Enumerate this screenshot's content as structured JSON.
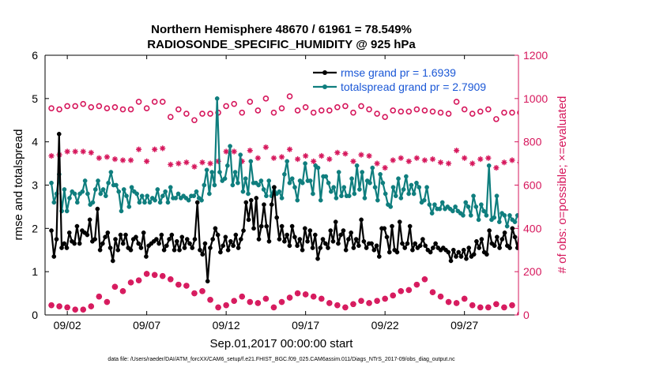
{
  "chart_data": {
    "type": "line",
    "title_line1": "Northern Hemisphere 48670 / 61961 = 78.549%",
    "title_line2": "RADIOSONDE_SPECIFIC_HUMIDITY @ 925 hPa",
    "xlabel": "Sep.01,2017 00:00:00 start",
    "ylabel_left": "rmse and totalspread",
    "ylabel_right": "# of obs: o=possible; ×=evaluated",
    "footnote": "data file: /Users/raeder/DAI/ATM_forcXX/CAM6_setup/f.e21.FHIST_BGC.f09_025.CAM6assim.011/Diags_NTrS_2017-09/obs_diag_output.nc",
    "xlim": [
      0.6,
      30.4
    ],
    "x_ticks": [
      {
        "value": 2,
        "label": "09/02"
      },
      {
        "value": 7,
        "label": "09/07"
      },
      {
        "value": 12,
        "label": "09/12"
      },
      {
        "value": 17,
        "label": "09/17"
      },
      {
        "value": 22,
        "label": "09/22"
      },
      {
        "value": 27,
        "label": "09/27"
      }
    ],
    "y_left": {
      "lim": [
        0,
        6
      ],
      "ticks": [
        0,
        1,
        2,
        3,
        4,
        5,
        6
      ]
    },
    "y_right": {
      "lim": [
        0,
        1200
      ],
      "ticks": [
        0,
        200,
        400,
        600,
        800,
        1000,
        1200
      ]
    },
    "colors": {
      "rmse": "#000000",
      "totalspread": "#0f7e7e",
      "obs": "#d6175c",
      "legend_text": "#1a57d6"
    },
    "legend": [
      {
        "label": "rmse grand pr = 1.6939",
        "series": "rmse"
      },
      {
        "label": "totalspread grand pr = 2.7909",
        "series": "totalspread"
      }
    ],
    "series": [
      {
        "name": "rmse",
        "axis": "left",
        "marker": "dot",
        "values": [
          1.95,
          1.35,
          1.75,
          4.18,
          1.55,
          1.65,
          1.55,
          1.9,
          1.7,
          1.65,
          2.05,
          1.65,
          1.95,
          1.9,
          1.85,
          2.2,
          1.7,
          1.75,
          2.45,
          1.5,
          1.65,
          1.8,
          1.9,
          1.55,
          1.25,
          1.75,
          1.5,
          1.85,
          1.65,
          1.85,
          1.55,
          1.5,
          1.75,
          1.8,
          1.65,
          1.55,
          1.9,
          1.35,
          1.6,
          1.65,
          1.7,
          1.75,
          1.65,
          1.85,
          1.5,
          1.6,
          1.75,
          1.85,
          1.5,
          1.7,
          1.5,
          1.8,
          1.55,
          1.75,
          1.65,
          1.55,
          1.75,
          2.6,
          1.5,
          1.4,
          1.65,
          0.78,
          1.55,
          1.75,
          2.0,
          1.85,
          1.45,
          1.6,
          1.8,
          1.5,
          1.7,
          1.6,
          1.85,
          1.55,
          1.75,
          1.95,
          2.6,
          2.2,
          2.65,
          2.0,
          2.7,
          1.75,
          2.05,
          2.55,
          2.05,
          1.7,
          2.55,
          2.95,
          2.25,
          1.75,
          2.05,
          1.7,
          1.85,
          1.6,
          2.05,
          1.8,
          1.6,
          1.75,
          1.5,
          2.0,
          1.7,
          1.95,
          1.55,
          1.85,
          1.3,
          1.55,
          1.75,
          1.65,
          1.55,
          1.95,
          1.7,
          2.15,
          1.65,
          1.85,
          1.95,
          1.5,
          1.75,
          1.9,
          1.55,
          1.75,
          1.6,
          2.2,
          1.7,
          1.55,
          1.65,
          1.65,
          1.5,
          1.6,
          1.35,
          2.0,
          2.0,
          1.8,
          1.45,
          2.05,
          1.5,
          1.45,
          2.15,
          1.65,
          1.55,
          1.65,
          2.05,
          1.5,
          1.65,
          1.55,
          1.6,
          1.75,
          1.6,
          1.5,
          1.45,
          1.55,
          1.65,
          1.55,
          1.5,
          1.55,
          1.5,
          1.45,
          1.25,
          1.5,
          1.35,
          1.45,
          1.35,
          1.5,
          1.3,
          1.55,
          1.35,
          1.4,
          1.7,
          1.55,
          1.75,
          1.45,
          1.4,
          1.95,
          1.65,
          1.6,
          1.8,
          1.55,
          1.75,
          1.9,
          1.6,
          1.55,
          2.0,
          1.8,
          1.55,
          2.05
        ]
      },
      {
        "name": "totalspread",
        "axis": "left",
        "marker": "dot",
        "values": [
          3.05,
          2.6,
          2.8,
          3.25,
          2.4,
          2.9,
          2.4,
          2.7,
          2.85,
          2.8,
          2.6,
          2.8,
          2.85,
          3.1,
          2.8,
          2.55,
          2.6,
          2.9,
          3.1,
          2.8,
          2.9,
          2.75,
          3.05,
          3.3,
          3.0,
          3.0,
          2.85,
          2.4,
          2.9,
          2.75,
          2.5,
          2.95,
          2.85,
          2.8,
          2.6,
          2.75,
          2.6,
          2.75,
          2.6,
          2.7,
          2.65,
          2.9,
          2.6,
          2.75,
          2.85,
          2.6,
          2.95,
          2.7,
          2.7,
          2.8,
          2.7,
          2.75,
          2.7,
          2.65,
          2.75,
          2.75,
          2.85,
          2.7,
          2.65,
          3.0,
          3.35,
          2.8,
          3.3,
          3.0,
          5.0,
          3.3,
          3.1,
          3.15,
          3.45,
          3.9,
          3.0,
          3.3,
          3.05,
          3.7,
          2.85,
          3.15,
          2.8,
          3.55,
          3.05,
          3.05,
          3.0,
          3.1,
          2.9,
          2.75,
          3.1,
          2.75,
          2.95,
          2.8,
          2.85,
          2.7,
          3.25,
          3.55,
          3.05,
          3.15,
          2.95,
          2.65,
          3.1,
          3.05,
          3.5,
          3.1,
          3.1,
          2.8,
          3.45,
          3.4,
          2.65,
          3.2,
          3.2,
          3.05,
          2.85,
          2.95,
          2.7,
          3.3,
          2.75,
          2.95,
          2.75,
          2.75,
          3.15,
          2.8,
          3.45,
          2.9,
          3.3,
          2.7,
          3.1,
          3.05,
          3.4,
          2.95,
          2.65,
          3.25,
          3.05,
          2.8,
          2.55,
          2.5,
          2.95,
          2.75,
          3.15,
          2.7,
          2.9,
          3.2,
          2.8,
          3.0,
          2.8,
          3.05,
          2.95,
          2.6,
          2.65,
          2.95,
          2.55,
          2.35,
          2.55,
          2.45,
          2.45,
          2.6,
          2.45,
          2.5,
          2.45,
          2.4,
          2.5,
          2.4,
          2.35,
          2.3,
          2.6,
          2.5,
          2.3,
          2.75,
          2.5,
          2.2,
          2.55,
          2.4,
          2.3,
          3.45,
          2.2,
          2.25,
          2.75,
          2.15,
          2.35,
          2.3,
          2.05,
          2.3,
          2.2,
          2.15,
          2.3,
          2.3
        ]
      },
      {
        "name": "obs_possible",
        "axis": "right",
        "marker": "circle",
        "x": [
          1,
          2,
          3,
          4,
          5,
          6,
          7,
          8,
          9,
          10,
          11,
          12,
          13,
          14,
          15,
          16,
          17,
          18,
          19,
          20,
          21,
          22,
          23,
          24,
          25,
          26,
          27,
          28,
          29,
          30
        ],
        "nominal": [
          955,
          965,
          975,
          965,
          960,
          950,
          955,
          985,
          950,
          900,
          930,
          965,
          935,
          945,
          935,
          1010,
          960,
          945,
          960,
          935,
          950,
          915,
          940,
          950,
          940,
          930,
          950,
          940,
          905,
          935
        ],
        "late": [
          950,
          965,
          960,
          955,
          950,
          985,
          985,
          915,
          930,
          930,
          935,
          975,
          985,
          1000,
          955,
          945,
          935,
          945,
          965,
          965,
          930,
          945,
          940,
          945,
          935,
          985,
          930,
          950,
          935,
          935
        ]
      },
      {
        "name": "obs_evaluated",
        "axis": "right",
        "marker": "star",
        "x": [
          1,
          2,
          3,
          4,
          5,
          6,
          7,
          8,
          9,
          10,
          11,
          12,
          13,
          14,
          15,
          16,
          17,
          18,
          19,
          20,
          21,
          22,
          23,
          24,
          25,
          26,
          27,
          28,
          29,
          30
        ],
        "nominal": [
          735,
          755,
          755,
          725,
          720,
          715,
          710,
          770,
          700,
          685,
          700,
          755,
          710,
          725,
          725,
          765,
          735,
          735,
          750,
          710,
          735,
          680,
          725,
          725,
          720,
          700,
          725,
          720,
          680,
          715
        ],
        "late": [
          740,
          755,
          750,
          730,
          715,
          765,
          765,
          695,
          705,
          705,
          710,
          755,
          760,
          775,
          730,
          720,
          710,
          720,
          745,
          740,
          700,
          715,
          710,
          715,
          705,
          760,
          700,
          725,
          705,
          705
        ]
      },
      {
        "name": "obs_near_zero",
        "axis": "right",
        "marker": "circle_star",
        "x": [
          1,
          2,
          3,
          4,
          5,
          6,
          7,
          8,
          9,
          10,
          11,
          12,
          13,
          14,
          15,
          16,
          17,
          18,
          19,
          20,
          21,
          22,
          23,
          24,
          25,
          26,
          27,
          28,
          29,
          30
        ],
        "nominal": [
          45,
          35,
          25,
          85,
          130,
          150,
          190,
          180,
          140,
          100,
          70,
          45,
          85,
          55,
          35,
          80,
          95,
          75,
          45,
          50,
          55,
          75,
          110,
          140,
          105,
          60,
          75,
          35,
          50,
          45
        ],
        "late": [
          40,
          25,
          40,
          60,
          110,
          160,
          185,
          165,
          135,
          110,
          35,
          65,
          60,
          75,
          60,
          100,
          85,
          55,
          35,
          65,
          65,
          90,
          115,
          165,
          85,
          55,
          45,
          35,
          35,
          5
        ]
      }
    ]
  }
}
